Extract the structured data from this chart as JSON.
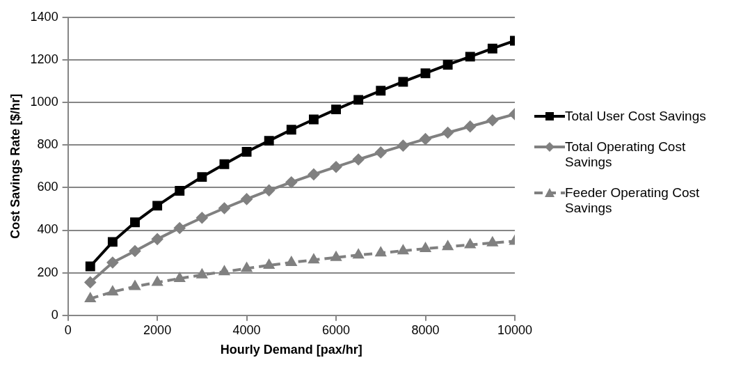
{
  "chart_data": {
    "type": "line",
    "xlabel": "Hourly Demand [pax/hr]",
    "ylabel": "Cost Savings Rate [$/hr]",
    "x": [
      500,
      1000,
      1500,
      2000,
      2500,
      3000,
      3500,
      4000,
      4500,
      5000,
      5500,
      6000,
      6500,
      7000,
      7500,
      8000,
      8500,
      9000,
      9500,
      10000
    ],
    "xlim": [
      0,
      10000
    ],
    "xticks": [
      0,
      2000,
      4000,
      6000,
      8000,
      10000
    ],
    "ylim": [
      0,
      1400
    ],
    "yticks": [
      0,
      200,
      400,
      600,
      800,
      1000,
      1200,
      1400
    ],
    "grid": "y",
    "legend": "right",
    "series": [
      {
        "name": "Total User Cost Savings",
        "color": "#000000",
        "marker": "square",
        "line_style": "solid",
        "values": [
          230,
          345,
          437,
          515,
          585,
          650,
          710,
          768,
          820,
          872,
          920,
          967,
          1012,
          1055,
          1097,
          1137,
          1177,
          1215,
          1253,
          1290
        ]
      },
      {
        "name": "Total Operating Cost Savings",
        "color": "#808080",
        "marker": "diamond",
        "line_style": "solid",
        "values": [
          155,
          248,
          302,
          358,
          410,
          458,
          503,
          546,
          587,
          625,
          662,
          697,
          732,
          765,
          797,
          828,
          858,
          887,
          916,
          945
        ]
      },
      {
        "name": "Feeder Operating Cost Savings",
        "color": "#808080",
        "marker": "triangle",
        "line_style": "dashed",
        "values": [
          78,
          110,
          135,
          155,
          173,
          190,
          205,
          220,
          235,
          248,
          260,
          272,
          283,
          293,
          303,
          313,
          322,
          331,
          340,
          348
        ]
      }
    ]
  }
}
